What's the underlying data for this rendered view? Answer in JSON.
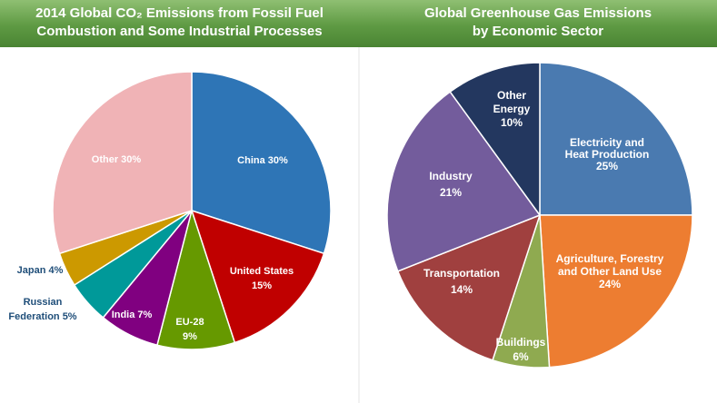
{
  "titles": {
    "left_line1": "2014 Global CO₂ Emissions from Fossil Fuel",
    "left_line2": "Combustion and Some Industrial Processes",
    "right_line1": "Global Greenhouse Gas Emissions",
    "right_line2": "by Economic Sector"
  },
  "chart_data": [
    {
      "type": "pie",
      "title": "2014 Global CO₂ Emissions from Fossil Fuel Combustion and Some Industrial Processes",
      "slices": [
        {
          "label": "China",
          "value": 30,
          "display": "China 30%",
          "color": "#2e75b6"
        },
        {
          "label": "United States",
          "value": 15,
          "display": "United States 15%",
          "color": "#c00000"
        },
        {
          "label": "EU-28",
          "value": 9,
          "display": "EU-28 9%",
          "color": "#669900"
        },
        {
          "label": "India",
          "value": 7,
          "display": "India 7%",
          "color": "#800080"
        },
        {
          "label": "Russian Federation",
          "value": 5,
          "display": "Russian Federation 5%",
          "color": "#009999"
        },
        {
          "label": "Japan",
          "value": 4,
          "display": "Japan 4%",
          "color": "#cc9900"
        },
        {
          "label": "Other",
          "value": 30,
          "display": "Other 30%",
          "color": "#f0b3b6"
        }
      ]
    },
    {
      "type": "pie",
      "title": "Global Greenhouse Gas Emissions by Economic Sector",
      "slices": [
        {
          "label": "Electricity and Heat Production",
          "value": 25,
          "display": "Electricity and Heat Production 25%",
          "color": "#4a7ab0"
        },
        {
          "label": "Agriculture, Forestry and Other Land Use",
          "value": 24,
          "display": "Agriculture, Forestry and Other Land Use 24%",
          "color": "#ed7d31"
        },
        {
          "label": "Buildings",
          "value": 6,
          "display": "Buildings 6%",
          "color": "#8faa50"
        },
        {
          "label": "Transportation",
          "value": 14,
          "display": "Transportation 14%",
          "color": "#a0403f"
        },
        {
          "label": "Industry",
          "value": 21,
          "display": "Industry 21%",
          "color": "#735c9c"
        },
        {
          "label": "Other Energy",
          "value": 10,
          "display": "Other Energy 10%",
          "color": "#23375f"
        }
      ]
    }
  ]
}
